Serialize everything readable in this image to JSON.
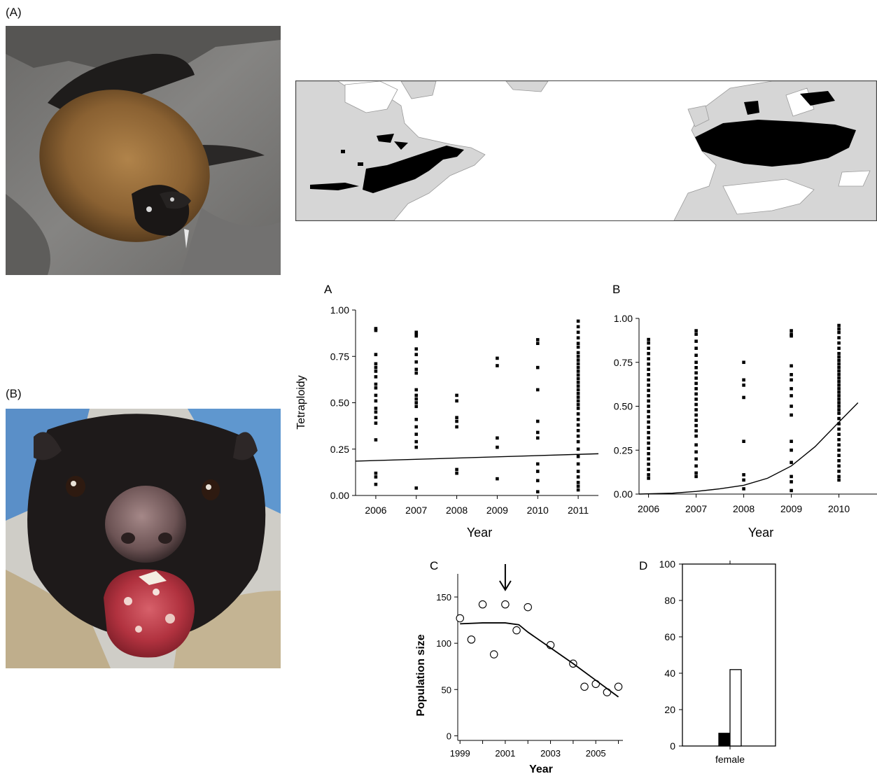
{
  "figure": {
    "label_a": "(A)",
    "label_b": "(B)",
    "photo_a": {
      "subject": "bat photo",
      "colors": {
        "rock": "#7c7c7a",
        "fur": "#8a6132",
        "wing": "#1c1a19"
      }
    },
    "photo_b": {
      "subject": "tasmanian devil with facial tumour photo",
      "colors": {
        "fur": "#1e1a1a",
        "tumour": "#b1323f",
        "cloth": "#bfae8c",
        "glove": "#5a8fc8"
      }
    },
    "map": {
      "subject": "range map north america and europe",
      "colors": {
        "land": "#d6d6d6",
        "water": "#ffffff",
        "range": "#000000"
      }
    }
  },
  "chart_data": [
    {
      "id": "A",
      "type": "scatter",
      "panel_label": "A",
      "title": "",
      "xlabel": "Year",
      "ylabel": "Tetraploidy",
      "x_ticks": [
        "2006",
        "2007",
        "2008",
        "2009",
        "2010",
        "2011"
      ],
      "y_ticks": [
        "0.00",
        "0.25",
        "0.50",
        "0.75",
        "1.00"
      ],
      "ylim": [
        0,
        1
      ],
      "series": [
        {
          "x": 2006,
          "values": [
            0.9,
            0.89,
            0.76,
            0.71,
            0.69,
            0.67,
            0.64,
            0.6,
            0.58,
            0.54,
            0.51,
            0.47,
            0.45,
            0.42,
            0.39,
            0.3,
            0.12,
            0.1,
            0.06
          ]
        },
        {
          "x": 2007,
          "values": [
            0.88,
            0.87,
            0.86,
            0.79,
            0.76,
            0.72,
            0.68,
            0.66,
            0.57,
            0.54,
            0.52,
            0.5,
            0.48,
            0.41,
            0.37,
            0.33,
            0.29,
            0.26,
            0.04
          ]
        },
        {
          "x": 2008,
          "values": [
            0.54,
            0.51,
            0.42,
            0.4,
            0.37,
            0.14,
            0.12
          ]
        },
        {
          "x": 2009,
          "values": [
            0.74,
            0.7,
            0.31,
            0.26,
            0.09
          ]
        },
        {
          "x": 2010,
          "values": [
            0.84,
            0.82,
            0.69,
            0.57,
            0.4,
            0.34,
            0.31,
            0.17,
            0.13,
            0.08,
            0.02
          ]
        },
        {
          "x": 2011,
          "values": [
            0.94,
            0.91,
            0.88,
            0.85,
            0.82,
            0.8,
            0.77,
            0.75,
            0.73,
            0.71,
            0.69,
            0.67,
            0.65,
            0.63,
            0.61,
            0.59,
            0.57,
            0.55,
            0.53,
            0.51,
            0.49,
            0.47,
            0.44,
            0.41,
            0.38,
            0.35,
            0.32,
            0.29,
            0.25,
            0.21,
            0.17,
            0.13,
            0.1,
            0.07,
            0.05,
            0.03
          ]
        }
      ],
      "trend": {
        "x": [
          2005.5,
          2011.5
        ],
        "y": [
          0.185,
          0.225
        ]
      }
    },
    {
      "id": "B",
      "type": "scatter",
      "panel_label": "B",
      "title": "",
      "xlabel": "Year",
      "ylabel": "",
      "x_ticks": [
        "2006",
        "2007",
        "2008",
        "2009",
        "2010"
      ],
      "y_ticks": [
        "0.00",
        "0.25",
        "0.50",
        "0.75",
        "1.00"
      ],
      "ylim": [
        0,
        1
      ],
      "series": [
        {
          "x": 2006,
          "values": [
            0.88,
            0.86,
            0.83,
            0.8,
            0.77,
            0.74,
            0.71,
            0.68,
            0.65,
            0.62,
            0.59,
            0.56,
            0.53,
            0.5,
            0.47,
            0.44,
            0.41,
            0.38,
            0.35,
            0.32,
            0.29,
            0.26,
            0.23,
            0.2,
            0.17,
            0.14,
            0.11,
            0.09
          ]
        },
        {
          "x": 2007,
          "values": [
            0.93,
            0.91,
            0.87,
            0.83,
            0.79,
            0.75,
            0.72,
            0.69,
            0.66,
            0.63,
            0.6,
            0.57,
            0.54,
            0.51,
            0.48,
            0.45,
            0.42,
            0.39,
            0.36,
            0.33,
            0.28,
            0.24,
            0.2,
            0.16,
            0.12,
            0.1
          ]
        },
        {
          "x": 2008,
          "values": [
            0.75,
            0.65,
            0.62,
            0.55,
            0.3,
            0.11,
            0.08,
            0.03
          ]
        },
        {
          "x": 2009,
          "values": [
            0.93,
            0.91,
            0.9,
            0.73,
            0.68,
            0.65,
            0.6,
            0.56,
            0.5,
            0.45,
            0.3,
            0.25,
            0.18,
            0.1,
            0.07,
            0.02
          ]
        },
        {
          "x": 2010,
          "values": [
            0.96,
            0.94,
            0.92,
            0.89,
            0.86,
            0.83,
            0.8,
            0.78,
            0.76,
            0.74,
            0.72,
            0.7,
            0.68,
            0.66,
            0.64,
            0.62,
            0.6,
            0.58,
            0.56,
            0.54,
            0.52,
            0.5,
            0.48,
            0.46,
            0.43,
            0.4,
            0.37,
            0.34,
            0.31,
            0.28,
            0.25,
            0.22,
            0.19,
            0.16,
            0.13,
            0.1,
            0.08
          ]
        }
      ],
      "trend": {
        "x": [
          2005.8,
          2006.5,
          2007,
          2007.5,
          2008,
          2008.5,
          2009,
          2009.5,
          2010,
          2010.4
        ],
        "y": [
          0.0,
          0.005,
          0.015,
          0.03,
          0.05,
          0.09,
          0.16,
          0.27,
          0.41,
          0.52
        ]
      }
    },
    {
      "id": "C",
      "type": "scatter",
      "panel_label": "C",
      "title": "",
      "xlabel": "Year",
      "ylabel": "Population size",
      "x_ticks": [
        "1999",
        "2001",
        "2003",
        "2005"
      ],
      "y_ticks": [
        "0",
        "50",
        "100",
        "150"
      ],
      "xlim": [
        1998.9,
        2006.2
      ],
      "ylim": [
        -5,
        175
      ],
      "arrow_at": 2001,
      "points": {
        "x": [
          1999.0,
          1999.5,
          2000.0,
          2000.5,
          2001.0,
          2001.5,
          2002.0,
          2003.0,
          2004.0,
          2004.5,
          2005.0,
          2005.5,
          2006.0
        ],
        "y": [
          127,
          104,
          142,
          88,
          142,
          114,
          139,
          98,
          78,
          53,
          56,
          47,
          53
        ]
      },
      "trend": {
        "x": [
          1999.0,
          2000.0,
          2001.0,
          2001.6,
          2002.0,
          2003.0,
          2004.0,
          2005.0,
          2006.0
        ],
        "y": [
          121,
          122,
          122,
          120,
          112,
          95,
          78,
          60,
          42
        ]
      }
    },
    {
      "id": "D",
      "type": "bar",
      "panel_label": "D",
      "title": "",
      "xlabel": "",
      "ylabel": "",
      "categories": [
        "female"
      ],
      "y_ticks": [
        "0",
        "20",
        "40",
        "60",
        "80",
        "100"
      ],
      "ylim": [
        0,
        100
      ],
      "series": [
        {
          "fill": "#000000",
          "values": [
            7
          ]
        },
        {
          "fill": "#ffffff",
          "values": [
            42
          ]
        }
      ]
    }
  ]
}
